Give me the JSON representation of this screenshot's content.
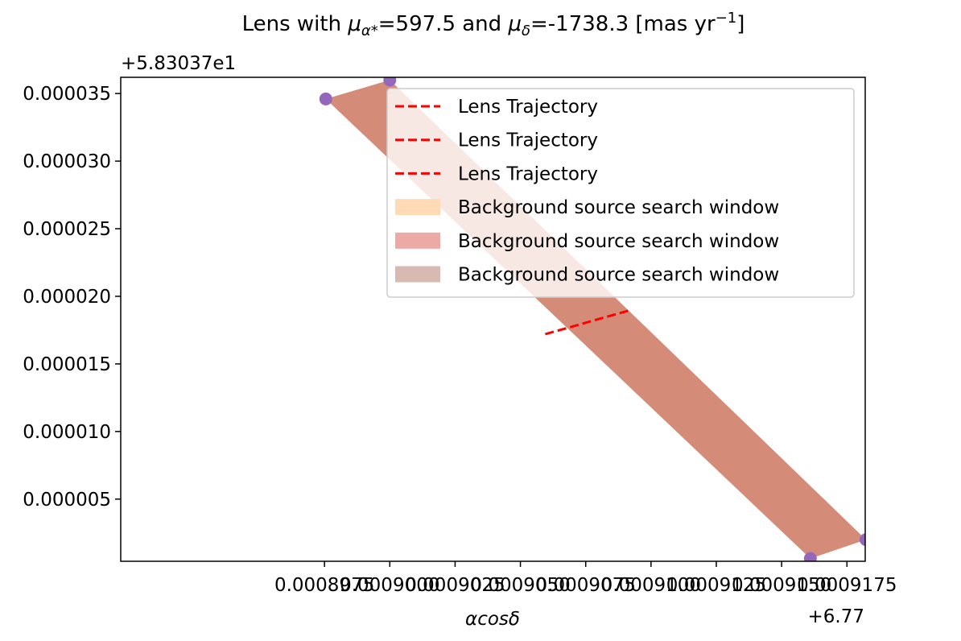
{
  "chart_data": {
    "type": "area",
    "title": {
      "prefix": "Lens with ",
      "mu": "μ",
      "sub1": "α*",
      "eq1": "=597.5 and ",
      "sub2": "δ",
      "eq2": "=-1738.3 [mas yr",
      "sup": "−1",
      "suffix": "]"
    },
    "xlabel": "αcosδ",
    "ylabel": "",
    "x_offset_label": "+6.77",
    "y_offset_label": "+5.83037e1",
    "xlim": [
      0.0008897,
      0.0009182
    ],
    "ylim": [
      4e-07,
      3.62e-05
    ],
    "x_ticks": [
      {
        "value": 0.0008975,
        "label": "0.0008975"
      },
      {
        "value": 0.0009,
        "label": "0.0009000"
      },
      {
        "value": 0.0009025,
        "label": "0.0009025"
      },
      {
        "value": 0.000905,
        "label": "0.0009050"
      },
      {
        "value": 0.0009075,
        "label": "0.0009075"
      },
      {
        "value": 0.00091,
        "label": "0.0009100"
      },
      {
        "value": 0.0009125,
        "label": "0.0009125"
      },
      {
        "value": 0.000915,
        "label": "0.0009150"
      },
      {
        "value": 0.0009175,
        "label": "0.0009175"
      }
    ],
    "y_ticks": [
      {
        "value": 5e-06,
        "label": "0.000005"
      },
      {
        "value": 1e-05,
        "label": "0.000010"
      },
      {
        "value": 1.5e-05,
        "label": "0.000015"
      },
      {
        "value": 2e-05,
        "label": "0.000020"
      },
      {
        "value": 2.5e-05,
        "label": "0.000025"
      },
      {
        "value": 3e-05,
        "label": "0.000030"
      },
      {
        "value": 3.5e-05,
        "label": "0.000035"
      }
    ],
    "search_window": {
      "color": "#d48c78",
      "polygon": [
        [
          0.00089755,
          3.46e-05
        ],
        [
          0.0009,
          3.6e-05
        ],
        [
          0.00091823,
          2e-06
        ],
        [
          0.0009161,
          6e-07
        ]
      ]
    },
    "trajectory": {
      "color": "#ff0000",
      "points": [
        [
          0.00090595,
          1.72e-05
        ],
        [
          0.00090925,
          1.9e-05
        ]
      ]
    },
    "corner_points": {
      "color": "#9467bd",
      "points": [
        [
          0.00089755,
          3.46e-05
        ],
        [
          0.0009,
          3.6e-05
        ],
        [
          0.0009161,
          6e-07
        ],
        [
          0.00091823,
          2e-06
        ]
      ]
    },
    "legend": {
      "position": "upper right",
      "entries": [
        {
          "label": "Lens Trajectory",
          "kind": "line",
          "color": "#ff0000"
        },
        {
          "label": "Lens Trajectory",
          "kind": "line",
          "color": "#ff0000"
        },
        {
          "label": "Lens Trajectory",
          "kind": "line",
          "color": "#ff0000"
        },
        {
          "label": "Background source search window",
          "kind": "patch",
          "color": "#ffdab4"
        },
        {
          "label": "Background source search window",
          "kind": "patch",
          "color": "#ebaaa5"
        },
        {
          "label": "Background source search window",
          "kind": "patch",
          "color": "#d8bab2"
        }
      ]
    }
  }
}
